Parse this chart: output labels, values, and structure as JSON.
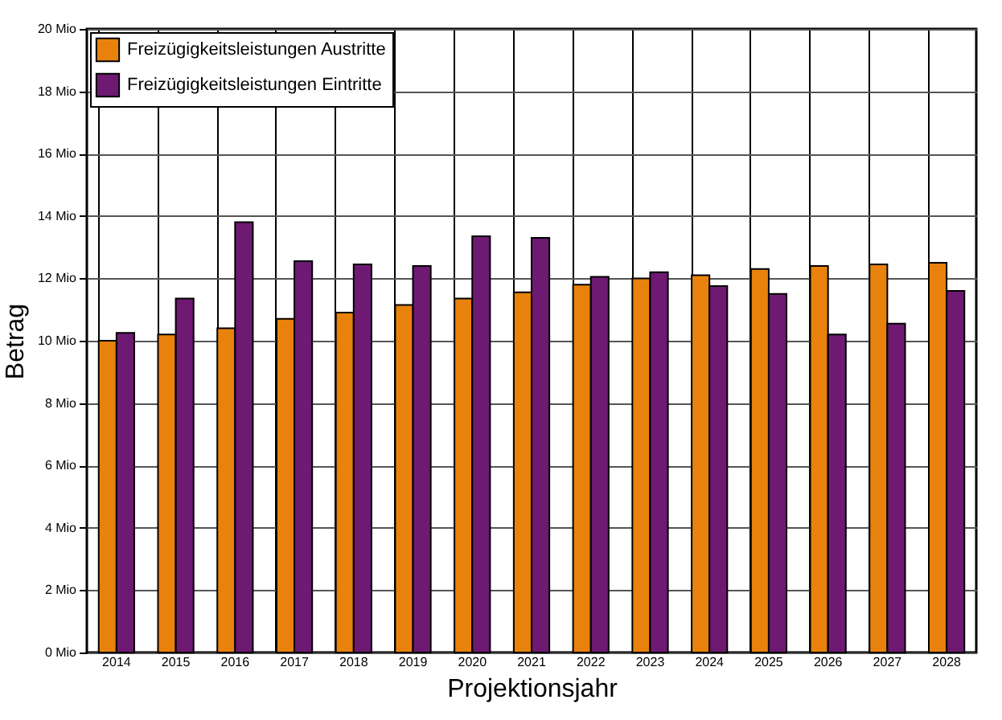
{
  "chart_data": {
    "type": "bar",
    "xlabel": "Projektionsjahr",
    "ylabel": "Betrag",
    "categories": [
      "2014",
      "2015",
      "2016",
      "2017",
      "2018",
      "2019",
      "2020",
      "2021",
      "2022",
      "2023",
      "2024",
      "2025",
      "2026",
      "2027",
      "2028"
    ],
    "series": [
      {
        "name": "Freizügigkeitsleistungen Austritte",
        "color": "#e8820c",
        "values": [
          10.0,
          10.2,
          10.4,
          10.7,
          10.9,
          11.15,
          11.35,
          11.55,
          11.8,
          12.0,
          12.1,
          12.3,
          12.4,
          12.45,
          12.5
        ]
      },
      {
        "name": "Freizügigkeitsleistungen Eintritte",
        "color": "#6e1a72",
        "values": [
          10.25,
          11.35,
          13.8,
          12.55,
          12.45,
          12.4,
          13.35,
          13.3,
          12.05,
          12.2,
          11.75,
          11.5,
          10.2,
          10.55,
          11.6
        ]
      }
    ],
    "ylim": [
      0,
      20
    ],
    "yticks": [
      {
        "value": 0,
        "label": "0  Mio"
      },
      {
        "value": 2,
        "label": "2  Mio"
      },
      {
        "value": 4,
        "label": "4  Mio"
      },
      {
        "value": 6,
        "label": "6  Mio"
      },
      {
        "value": 8,
        "label": "8  Mio"
      },
      {
        "value": 10,
        "label": "10  Mio"
      },
      {
        "value": 12,
        "label": "12  Mio"
      },
      {
        "value": 14,
        "label": "14  Mio"
      },
      {
        "value": 16,
        "label": "16  Mio"
      },
      {
        "value": 18,
        "label": "18  Mio"
      },
      {
        "value": 20,
        "label": "20  Mio"
      }
    ],
    "grid": true,
    "legend": "top left"
  }
}
